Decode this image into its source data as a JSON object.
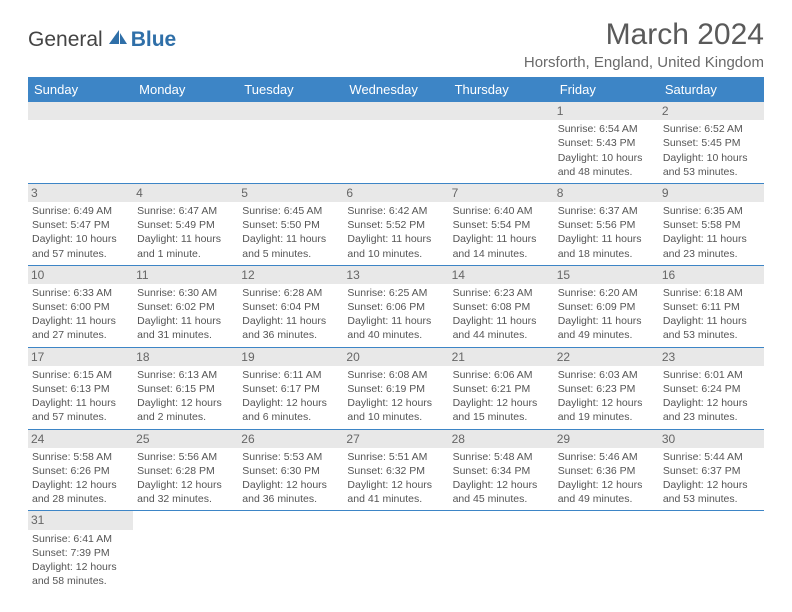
{
  "logo": {
    "text1": "General",
    "text2": "Blue"
  },
  "title": "March 2024",
  "location": "Horsforth, England, United Kingdom",
  "colors": {
    "header_bg": "#3d85c6",
    "header_text": "#ffffff",
    "daynum_bg": "#e8e8e8",
    "border": "#3d85c6",
    "body_text": "#555555",
    "title_text": "#5a5a5a"
  },
  "day_headers": [
    "Sunday",
    "Monday",
    "Tuesday",
    "Wednesday",
    "Thursday",
    "Friday",
    "Saturday"
  ],
  "weeks": [
    [
      {
        "n": "",
        "lines": []
      },
      {
        "n": "",
        "lines": []
      },
      {
        "n": "",
        "lines": []
      },
      {
        "n": "",
        "lines": []
      },
      {
        "n": "",
        "lines": []
      },
      {
        "n": "1",
        "lines": [
          "Sunrise: 6:54 AM",
          "Sunset: 5:43 PM",
          "Daylight: 10 hours",
          "and 48 minutes."
        ]
      },
      {
        "n": "2",
        "lines": [
          "Sunrise: 6:52 AM",
          "Sunset: 5:45 PM",
          "Daylight: 10 hours",
          "and 53 minutes."
        ]
      }
    ],
    [
      {
        "n": "3",
        "lines": [
          "Sunrise: 6:49 AM",
          "Sunset: 5:47 PM",
          "Daylight: 10 hours",
          "and 57 minutes."
        ]
      },
      {
        "n": "4",
        "lines": [
          "Sunrise: 6:47 AM",
          "Sunset: 5:49 PM",
          "Daylight: 11 hours",
          "and 1 minute."
        ]
      },
      {
        "n": "5",
        "lines": [
          "Sunrise: 6:45 AM",
          "Sunset: 5:50 PM",
          "Daylight: 11 hours",
          "and 5 minutes."
        ]
      },
      {
        "n": "6",
        "lines": [
          "Sunrise: 6:42 AM",
          "Sunset: 5:52 PM",
          "Daylight: 11 hours",
          "and 10 minutes."
        ]
      },
      {
        "n": "7",
        "lines": [
          "Sunrise: 6:40 AM",
          "Sunset: 5:54 PM",
          "Daylight: 11 hours",
          "and 14 minutes."
        ]
      },
      {
        "n": "8",
        "lines": [
          "Sunrise: 6:37 AM",
          "Sunset: 5:56 PM",
          "Daylight: 11 hours",
          "and 18 minutes."
        ]
      },
      {
        "n": "9",
        "lines": [
          "Sunrise: 6:35 AM",
          "Sunset: 5:58 PM",
          "Daylight: 11 hours",
          "and 23 minutes."
        ]
      }
    ],
    [
      {
        "n": "10",
        "lines": [
          "Sunrise: 6:33 AM",
          "Sunset: 6:00 PM",
          "Daylight: 11 hours",
          "and 27 minutes."
        ]
      },
      {
        "n": "11",
        "lines": [
          "Sunrise: 6:30 AM",
          "Sunset: 6:02 PM",
          "Daylight: 11 hours",
          "and 31 minutes."
        ]
      },
      {
        "n": "12",
        "lines": [
          "Sunrise: 6:28 AM",
          "Sunset: 6:04 PM",
          "Daylight: 11 hours",
          "and 36 minutes."
        ]
      },
      {
        "n": "13",
        "lines": [
          "Sunrise: 6:25 AM",
          "Sunset: 6:06 PM",
          "Daylight: 11 hours",
          "and 40 minutes."
        ]
      },
      {
        "n": "14",
        "lines": [
          "Sunrise: 6:23 AM",
          "Sunset: 6:08 PM",
          "Daylight: 11 hours",
          "and 44 minutes."
        ]
      },
      {
        "n": "15",
        "lines": [
          "Sunrise: 6:20 AM",
          "Sunset: 6:09 PM",
          "Daylight: 11 hours",
          "and 49 minutes."
        ]
      },
      {
        "n": "16",
        "lines": [
          "Sunrise: 6:18 AM",
          "Sunset: 6:11 PM",
          "Daylight: 11 hours",
          "and 53 minutes."
        ]
      }
    ],
    [
      {
        "n": "17",
        "lines": [
          "Sunrise: 6:15 AM",
          "Sunset: 6:13 PM",
          "Daylight: 11 hours",
          "and 57 minutes."
        ]
      },
      {
        "n": "18",
        "lines": [
          "Sunrise: 6:13 AM",
          "Sunset: 6:15 PM",
          "Daylight: 12 hours",
          "and 2 minutes."
        ]
      },
      {
        "n": "19",
        "lines": [
          "Sunrise: 6:11 AM",
          "Sunset: 6:17 PM",
          "Daylight: 12 hours",
          "and 6 minutes."
        ]
      },
      {
        "n": "20",
        "lines": [
          "Sunrise: 6:08 AM",
          "Sunset: 6:19 PM",
          "Daylight: 12 hours",
          "and 10 minutes."
        ]
      },
      {
        "n": "21",
        "lines": [
          "Sunrise: 6:06 AM",
          "Sunset: 6:21 PM",
          "Daylight: 12 hours",
          "and 15 minutes."
        ]
      },
      {
        "n": "22",
        "lines": [
          "Sunrise: 6:03 AM",
          "Sunset: 6:23 PM",
          "Daylight: 12 hours",
          "and 19 minutes."
        ]
      },
      {
        "n": "23",
        "lines": [
          "Sunrise: 6:01 AM",
          "Sunset: 6:24 PM",
          "Daylight: 12 hours",
          "and 23 minutes."
        ]
      }
    ],
    [
      {
        "n": "24",
        "lines": [
          "Sunrise: 5:58 AM",
          "Sunset: 6:26 PM",
          "Daylight: 12 hours",
          "and 28 minutes."
        ]
      },
      {
        "n": "25",
        "lines": [
          "Sunrise: 5:56 AM",
          "Sunset: 6:28 PM",
          "Daylight: 12 hours",
          "and 32 minutes."
        ]
      },
      {
        "n": "26",
        "lines": [
          "Sunrise: 5:53 AM",
          "Sunset: 6:30 PM",
          "Daylight: 12 hours",
          "and 36 minutes."
        ]
      },
      {
        "n": "27",
        "lines": [
          "Sunrise: 5:51 AM",
          "Sunset: 6:32 PM",
          "Daylight: 12 hours",
          "and 41 minutes."
        ]
      },
      {
        "n": "28",
        "lines": [
          "Sunrise: 5:48 AM",
          "Sunset: 6:34 PM",
          "Daylight: 12 hours",
          "and 45 minutes."
        ]
      },
      {
        "n": "29",
        "lines": [
          "Sunrise: 5:46 AM",
          "Sunset: 6:36 PM",
          "Daylight: 12 hours",
          "and 49 minutes."
        ]
      },
      {
        "n": "30",
        "lines": [
          "Sunrise: 5:44 AM",
          "Sunset: 6:37 PM",
          "Daylight: 12 hours",
          "and 53 minutes."
        ]
      }
    ],
    [
      {
        "n": "31",
        "lines": [
          "Sunrise: 6:41 AM",
          "Sunset: 7:39 PM",
          "Daylight: 12 hours",
          "and 58 minutes."
        ]
      },
      {
        "n": "",
        "lines": []
      },
      {
        "n": "",
        "lines": []
      },
      {
        "n": "",
        "lines": []
      },
      {
        "n": "",
        "lines": []
      },
      {
        "n": "",
        "lines": []
      },
      {
        "n": "",
        "lines": []
      }
    ]
  ]
}
